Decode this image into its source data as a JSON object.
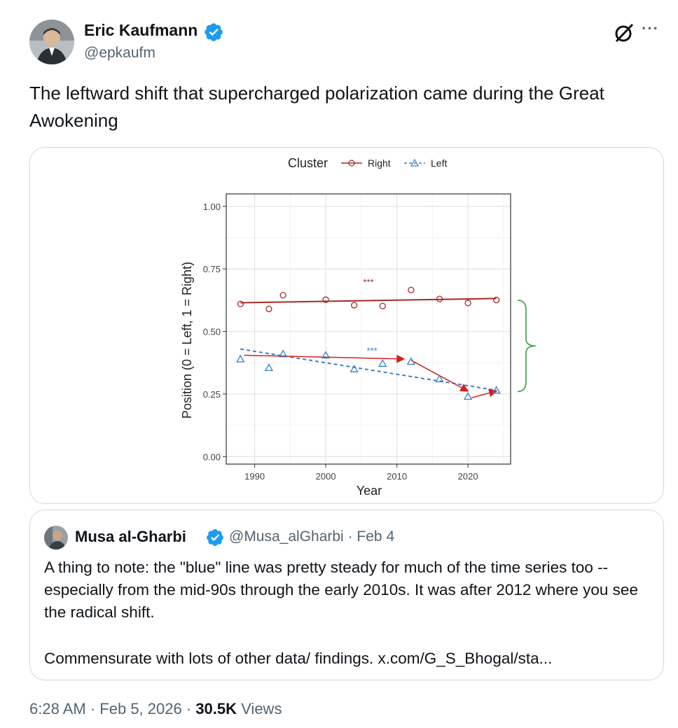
{
  "author": {
    "name": "Eric Kaufmann",
    "handle": "@epkaufm",
    "verified_color": "#1d9bf0"
  },
  "icons": {
    "grok": "grok-icon",
    "more": "···"
  },
  "tweet": {
    "text": "The leftward shift that supercharged polarization came during the Great Awokening"
  },
  "quote": {
    "name": "Musa al-Gharbi",
    "handle": "@Musa_alGharbi",
    "date": "Feb 4",
    "separator": "·",
    "line1": "A thing to note: the \"blue\" line was pretty steady for much of the time series too -- especially from the mid-90s through the early 2010s. It was after 2012 where you see the radical shift.",
    "line2": "Commensurate with lots of other data/ findings. x.com/G_S_Bhogal/sta..."
  },
  "footer": {
    "time": "6:28 AM",
    "sep1": "·",
    "date": "Feb 5, 2026",
    "sep2": "·",
    "views_count": "30.5K",
    "views_label": "Views"
  },
  "chart_data": {
    "type": "scatter",
    "legend_title": "Cluster",
    "legend_position": "top",
    "xlabel": "Year",
    "ylabel": "Position (0 = Left, 1 = Right)",
    "xlim": [
      1986,
      2026
    ],
    "ylim": [
      -0.03,
      1.05
    ],
    "xticks": [
      1990,
      2000,
      2010,
      2020
    ],
    "yticks": [
      "0.00",
      "0.25",
      "0.50",
      "0.75",
      "1.00"
    ],
    "grid": true,
    "series": [
      {
        "name": "Right",
        "color": "#a52a2a",
        "marker": "circle",
        "line_style": "solid",
        "x": [
          1988,
          1992,
          1994,
          2000,
          2004,
          2008,
          2012,
          2016,
          2020,
          2024
        ],
        "y": [
          0.61,
          0.59,
          0.645,
          0.627,
          0.605,
          0.602,
          0.666,
          0.63,
          0.614,
          0.626
        ],
        "trend": [
          0.615,
          0.632
        ],
        "significance": "***"
      },
      {
        "name": "Left",
        "color": "#3b82c4",
        "marker": "triangle",
        "line_style": "dashed",
        "x": [
          1988,
          1992,
          1994,
          2000,
          2004,
          2008,
          2012,
          2016,
          2020,
          2024
        ],
        "y": [
          0.39,
          0.355,
          0.41,
          0.405,
          0.35,
          0.372,
          0.38,
          0.31,
          0.24,
          0.265
        ],
        "trend": [
          0.43,
          0.265
        ],
        "significance": "***"
      }
    ],
    "annotations": {
      "arrow_color": "#d22020",
      "arrows": [
        {
          "from": [
            1988.5,
            0.405
          ],
          "to": [
            2011,
            0.39
          ]
        },
        {
          "from": [
            2012,
            0.385
          ],
          "to": [
            2020,
            0.262
          ]
        },
        {
          "from": [
            2020.5,
            0.235
          ],
          "to": [
            2024,
            0.262
          ]
        }
      ],
      "bracket_color": "#3aa043",
      "bracket_range": [
        0.26,
        0.625
      ]
    }
  }
}
